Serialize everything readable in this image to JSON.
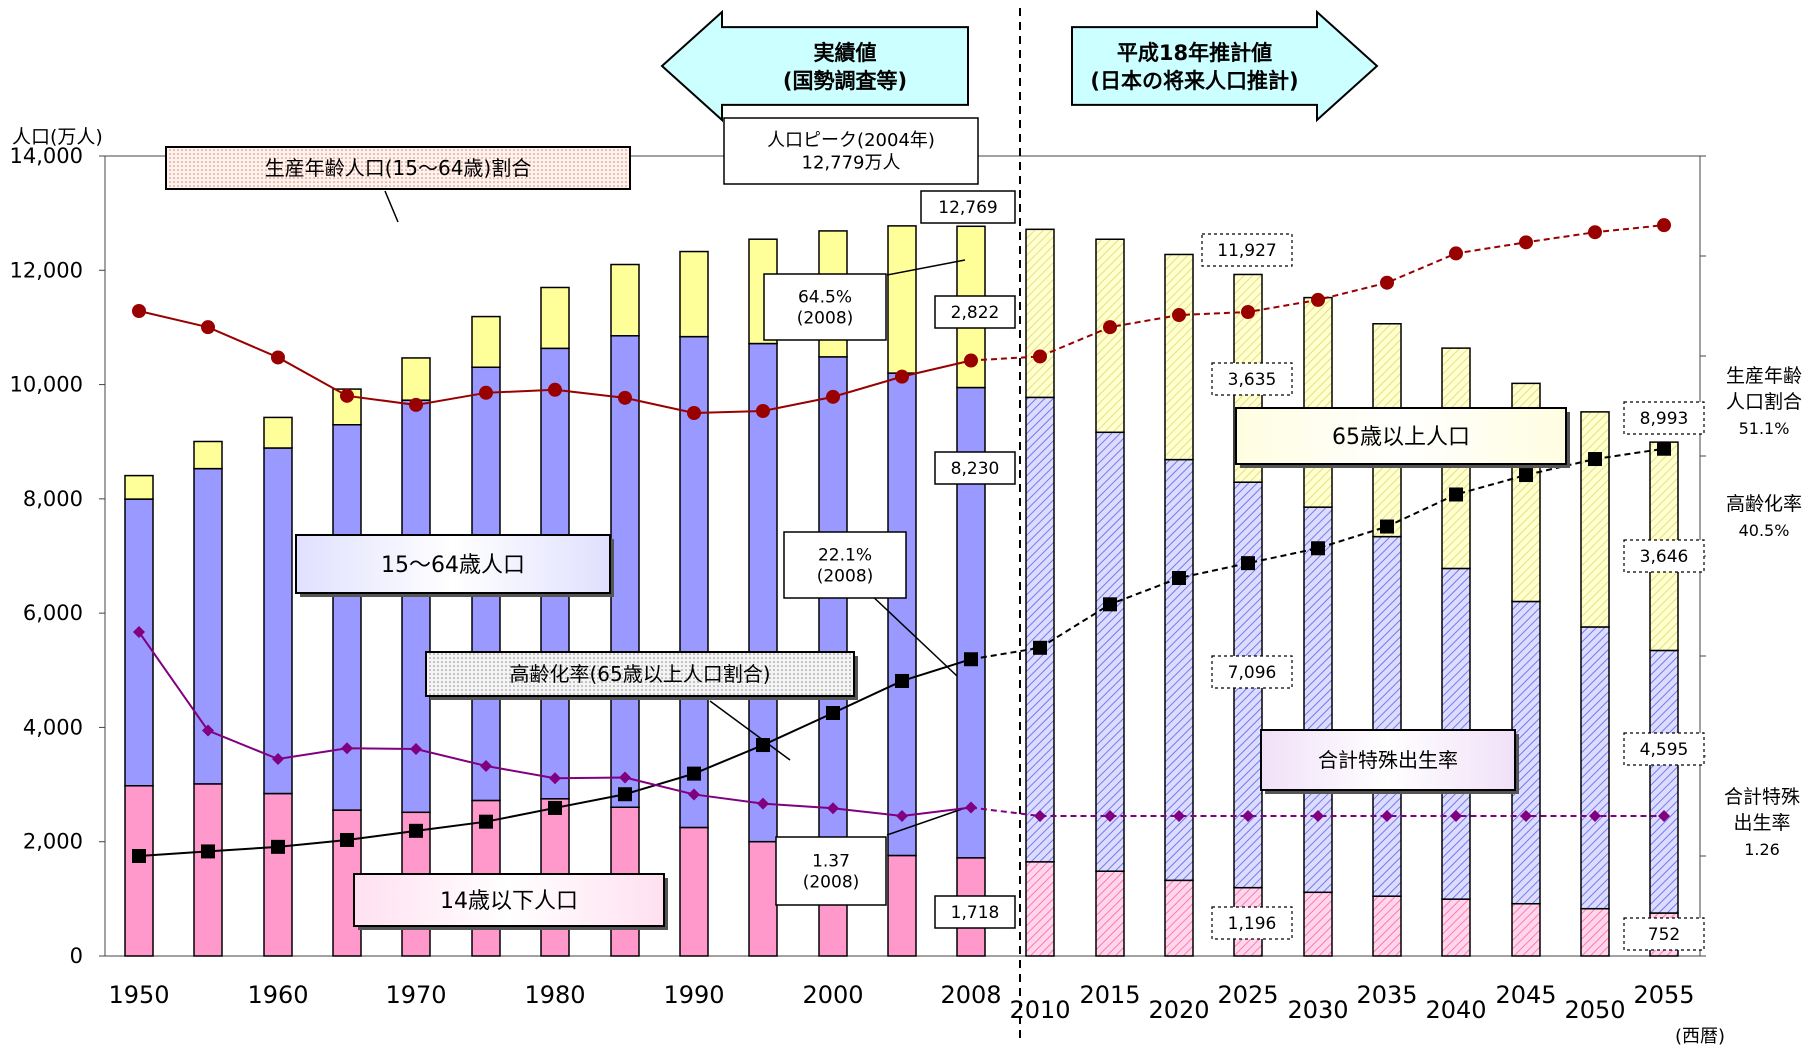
{
  "chart_data": {
    "type": "bar",
    "title": "",
    "ylabel": "人口(万人)",
    "xlabel": "(西暦)",
    "ylim": [
      0,
      14000
    ],
    "yticks": [
      0,
      2000,
      4000,
      6000,
      8000,
      10000,
      12000,
      14000
    ],
    "ytick_labels": [
      "0",
      "2,000",
      "4,000",
      "6,000",
      "8,000",
      "10,000",
      "12,000",
      "14,000"
    ],
    "categories": [
      "1950",
      "1955",
      "1960",
      "1965",
      "1970",
      "1975",
      "1980",
      "1985",
      "1990",
      "1995",
      "2000",
      "2005",
      "2008",
      "2010",
      "2015",
      "2020",
      "2025",
      "2030",
      "2035",
      "2040",
      "2045",
      "2050",
      "2055"
    ],
    "x_tick_labels": [
      "1950",
      "",
      "1960",
      "",
      "1970",
      "",
      "1980",
      "",
      "1990",
      "",
      "2000",
      "",
      "2008",
      "2010",
      "2015",
      "2020",
      "2025",
      "2030",
      "2035",
      "2040",
      "2045",
      "2050",
      "2055"
    ],
    "projected_from_index": 13,
    "series": [
      {
        "name": "14歳以下人口",
        "color": "#ff99cc",
        "stack": true,
        "values": [
          2979,
          3012,
          2843,
          2553,
          2515,
          2722,
          2751,
          2603,
          2249,
          2001,
          1847,
          1759,
          1718,
          1648,
          1484,
          1324,
          1196,
          1115,
          1047,
          995,
          915,
          828,
          752
        ]
      },
      {
        "name": "15～64歳人口",
        "color": "#9999ff",
        "stack": true,
        "values": [
          5017,
          5517,
          6047,
          6744,
          7212,
          7581,
          7883,
          8251,
          8590,
          8717,
          8638,
          8442,
          8230,
          8128,
          7681,
          7363,
          7096,
          6740,
          6292,
          5787,
          5289,
          4930,
          4595
        ]
      },
      {
        "name": "65歳以上人口",
        "color": "#ffff99",
        "stack": true,
        "values": [
          411,
          475,
          535,
          624,
          739,
          887,
          1065,
          1247,
          1489,
          1826,
          2204,
          2576,
          2822,
          2941,
          3378,
          3590,
          3635,
          3667,
          3725,
          3856,
          3817,
          3764,
          3646
        ]
      },
      {
        "name": "生産年齢人口(15～64歳)割合",
        "type": "line",
        "color": "#990000",
        "unit": "%",
        "values": [
          59.6,
          61.2,
          64.2,
          68.0,
          68.9,
          67.7,
          67.4,
          68.2,
          69.7,
          69.5,
          68.1,
          66.1,
          64.5,
          64.1,
          61.2,
          60.0,
          59.7,
          58.5,
          56.8,
          53.9,
          52.8,
          51.8,
          51.1
        ]
      },
      {
        "name": "高齢化率(65歳以上人口割合)",
        "type": "line",
        "color": "#000000",
        "unit": "%",
        "values": [
          4.9,
          5.3,
          5.7,
          6.3,
          7.1,
          7.9,
          9.1,
          10.3,
          12.1,
          14.6,
          17.4,
          20.2,
          22.1,
          23.1,
          26.9,
          29.2,
          30.5,
          31.8,
          33.7,
          36.5,
          38.2,
          39.6,
          40.5
        ]
      },
      {
        "name": "合計特殊出生率",
        "type": "line",
        "color": "#800080",
        "values": [
          3.65,
          2.37,
          2.0,
          2.14,
          2.13,
          1.91,
          1.75,
          1.76,
          1.54,
          1.42,
          1.36,
          1.26,
          1.37,
          1.26,
          1.26,
          1.26,
          1.26,
          1.26,
          1.26,
          1.26,
          1.26,
          1.26,
          1.26
        ]
      }
    ],
    "data_labels": [
      {
        "category_index": 12,
        "text": "12,769"
      },
      {
        "category_index": 12,
        "text": "2,822"
      },
      {
        "category_index": 12,
        "text": "8,230"
      },
      {
        "category_index": 12,
        "text": "1,718"
      },
      {
        "category_index": 16,
        "text": "11,927"
      },
      {
        "category_index": 16,
        "text": "3,635"
      },
      {
        "category_index": 16,
        "text": "7,096"
      },
      {
        "category_index": 16,
        "text": "1,196"
      },
      {
        "category_index": 22,
        "text": "8,993"
      },
      {
        "category_index": 22,
        "text": "3,646"
      },
      {
        "category_index": 22,
        "text": "4,595"
      },
      {
        "category_index": 22,
        "text": "752"
      }
    ],
    "annotations": {
      "actual_arrow": [
        "実績値",
        "(国勢調査等)"
      ],
      "projection_arrow": [
        "平成18年推計値",
        "(日本の将来人口推計)"
      ],
      "peak": [
        "人口ピーク(2004年)",
        "12,779万人"
      ],
      "callout_working": [
        "64.5%",
        "(2008)"
      ],
      "callout_aging": [
        "22.1%",
        "(2008)"
      ],
      "callout_fertility": [
        "1.37",
        "(2008)"
      ],
      "label_working_ratio": "生産年齢人口(15～64歳)割合",
      "label_aging_rate": "高齢化率(65歳以上人口割合)",
      "label_fertility": "合計特殊出生率",
      "label_age65": "65歳以上人口",
      "label_age15_64": "15～64歳人口",
      "label_age14": "14歳以下人口",
      "right_working": [
        "生産年齢",
        "人口割合",
        "51.1%"
      ],
      "right_aging": [
        "高齢化率",
        "40.5%"
      ],
      "right_fertility": [
        "合計特殊",
        "出生率",
        "1.26"
      ]
    },
    "legend": "none",
    "grid": false
  }
}
